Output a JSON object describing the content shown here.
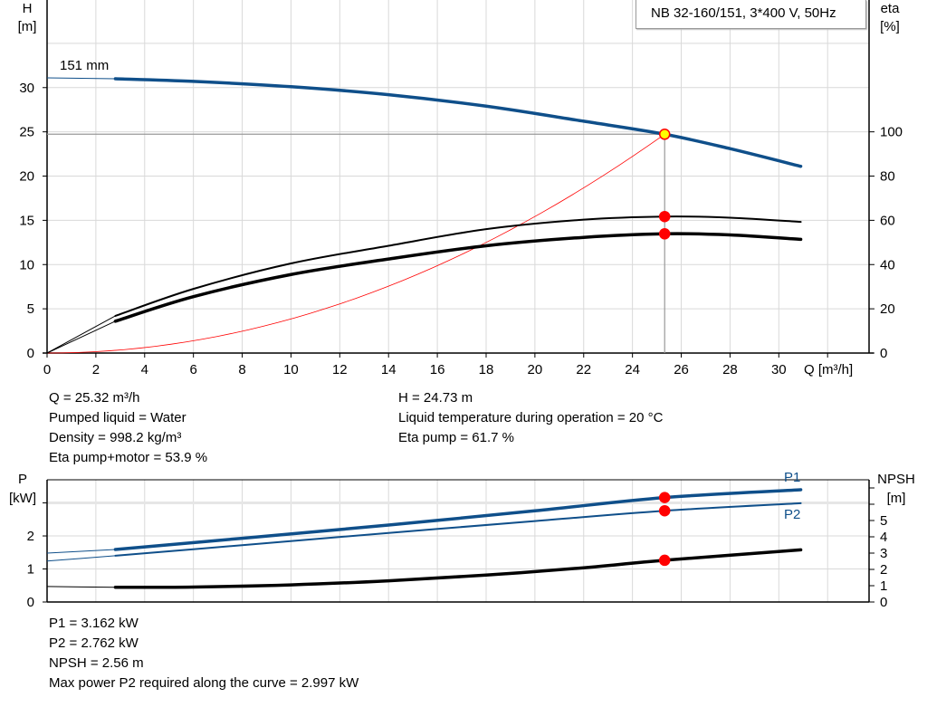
{
  "title": "NB 32-160/151, 3*400 V, 50Hz",
  "chart_data": [
    {
      "type": "line",
      "title": "NB 32-160/151, 3*400 V, 50Hz",
      "xlabel": "Q [m³/h]",
      "ylabel": "H\n[m]",
      "ylabel_lines": [
        "H",
        "[m]"
      ],
      "y2label_lines": [
        "eta",
        "[%]"
      ],
      "xlim": [
        0,
        33.7
      ],
      "ylim": [
        0,
        39.9
      ],
      "y2lim": [
        0,
        159.6
      ],
      "xticks": [
        0,
        2,
        4,
        6,
        8,
        10,
        12,
        14,
        16,
        18,
        20,
        22,
        24,
        26,
        28,
        30
      ],
      "yticks": [
        0,
        5,
        10,
        15,
        20,
        25,
        30
      ],
      "y2ticks": [
        0,
        20,
        40,
        60,
        80,
        100
      ],
      "grid": true,
      "curve_label": "151 mm",
      "thin_below_q": 2.8,
      "series": [
        {
          "key": "H",
          "axis": "left",
          "color": "#0f4f8a",
          "x": [
            0,
            2.8,
            6,
            10,
            14,
            18,
            22,
            25.32,
            28,
            30.9
          ],
          "y": [
            31.1,
            31.0,
            30.7,
            30.1,
            29.2,
            27.9,
            26.2,
            24.73,
            23.1,
            21.1
          ]
        },
        {
          "key": "eta_pump",
          "axis": "right",
          "color": "#000000",
          "x": [
            0,
            2.8,
            6,
            10,
            14,
            18,
            22,
            25.32,
            28,
            30.9
          ],
          "y": [
            0,
            16.8,
            29,
            40.5,
            48.5,
            56,
            60.3,
            61.7,
            61.2,
            59.3
          ]
        },
        {
          "key": "eta_pump_motor",
          "axis": "right",
          "color": "#000000",
          "x": [
            0,
            2.8,
            6,
            10,
            14,
            18,
            22,
            25.32,
            28,
            30.9
          ],
          "y": [
            0,
            14.4,
            25.5,
            35.5,
            42.5,
            48.5,
            52.3,
            53.9,
            53.4,
            51.4
          ]
        },
        {
          "key": "system_curve",
          "axis": "left",
          "color": "#ff0000",
          "parabola_through": [
            25.32,
            24.73
          ]
        }
      ],
      "duty_point": {
        "Q": 25.32,
        "H": 24.73,
        "eta_pump": 61.7,
        "eta_pump_motor": 53.9
      }
    },
    {
      "type": "line",
      "ylabel_lines": [
        "P",
        "[kW]"
      ],
      "y2label_lines": [
        "NPSH",
        "[m]"
      ],
      "xlim": [
        0,
        33.7
      ],
      "ylim": [
        0,
        3.7
      ],
      "y2lim": [
        0,
        7.5
      ],
      "yticks": [
        0,
        1,
        2
      ],
      "yticks_unlabeled": [
        3
      ],
      "y2ticks": [
        0,
        1,
        2,
        3,
        4,
        5
      ],
      "y2ticks_unlabeled": [
        6,
        7
      ],
      "grid": true,
      "thin_below_q": 2.8,
      "series": [
        {
          "key": "P1",
          "name": "P1",
          "axis": "left",
          "color": "#0f4f8a",
          "x": [
            0,
            2.8,
            8,
            14,
            20,
            25.32,
            30.9
          ],
          "y": [
            1.48,
            1.59,
            1.93,
            2.33,
            2.76,
            3.162,
            3.4
          ]
        },
        {
          "key": "P2",
          "name": "P2",
          "axis": "left",
          "color": "#0f4f8a",
          "x": [
            0,
            2.8,
            8,
            14,
            20,
            25.32,
            30.9
          ],
          "y": [
            1.24,
            1.4,
            1.72,
            2.09,
            2.45,
            2.762,
            2.99
          ]
        },
        {
          "key": "NPSH",
          "axis": "right",
          "color": "#000000",
          "x": [
            0,
            2.8,
            6,
            10,
            14,
            18,
            22,
            25.32,
            30.9
          ],
          "y": [
            0.95,
            0.9,
            0.92,
            1.05,
            1.3,
            1.65,
            2.1,
            2.56,
            3.2
          ]
        }
      ],
      "duty_point": {
        "Q": 25.32,
        "P1": 3.162,
        "P2": 2.762,
        "NPSH": 2.56
      }
    }
  ],
  "info_top_left": [
    "Q = 25.32 m³/h",
    "Pumped liquid = Water",
    "Density = 998.2 kg/m³",
    "Eta pump+motor = 53.9 %"
  ],
  "info_top_right": [
    "H = 24.73 m",
    "Liquid temperature during operation = 20 °C",
    "Eta pump = 61.7 %"
  ],
  "info_bottom": [
    "P1 = 3.162 kW",
    "P2 = 2.762 kW",
    "NPSH = 2.56 m",
    "Max power P2 required along the curve = 2.997 kW"
  ],
  "colors": {
    "blue": "#0f4f8a",
    "red": "#ff0000",
    "duty_marker_fill": "#ffff00",
    "grid": "#d9d9d9"
  }
}
